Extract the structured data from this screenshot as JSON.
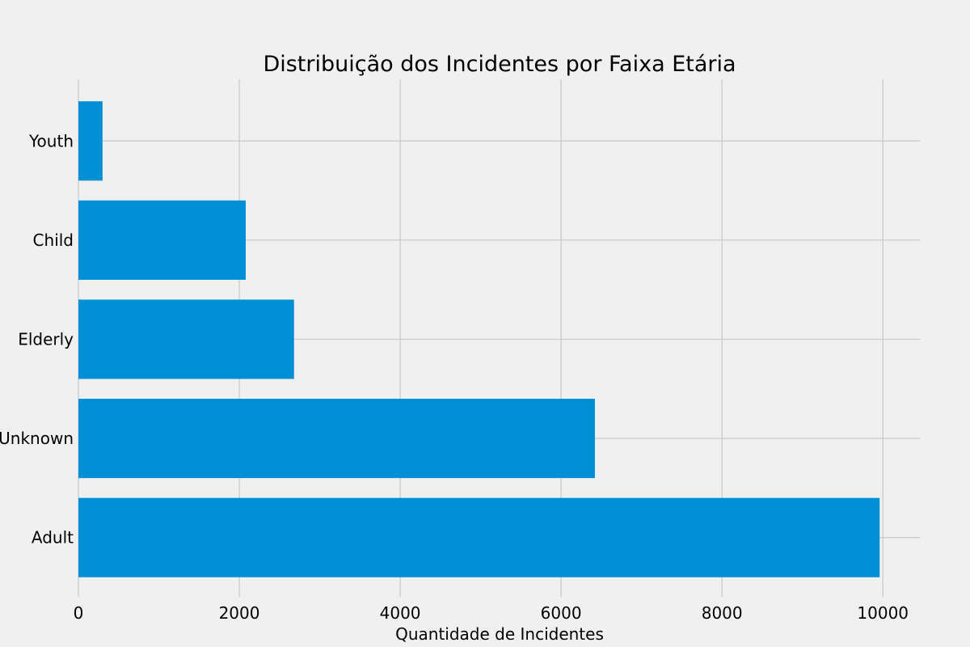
{
  "chart_data": {
    "type": "bar",
    "orientation": "horizontal",
    "title": "Distribuição dos Incidentes por Faixa Etária",
    "xlabel": "Quantidade de Incidentes",
    "ylabel": "",
    "categories": [
      "Adult",
      "Unknown",
      "Elderly",
      "Child",
      "Youth"
    ],
    "values": [
      9960,
      6420,
      2680,
      2080,
      300
    ],
    "xlim": [
      0,
      10460
    ],
    "xticks": [
      0,
      2000,
      4000,
      6000,
      8000,
      10000
    ],
    "grid": true,
    "bar_color": "#008fd5",
    "background": "#f0f0f0"
  }
}
